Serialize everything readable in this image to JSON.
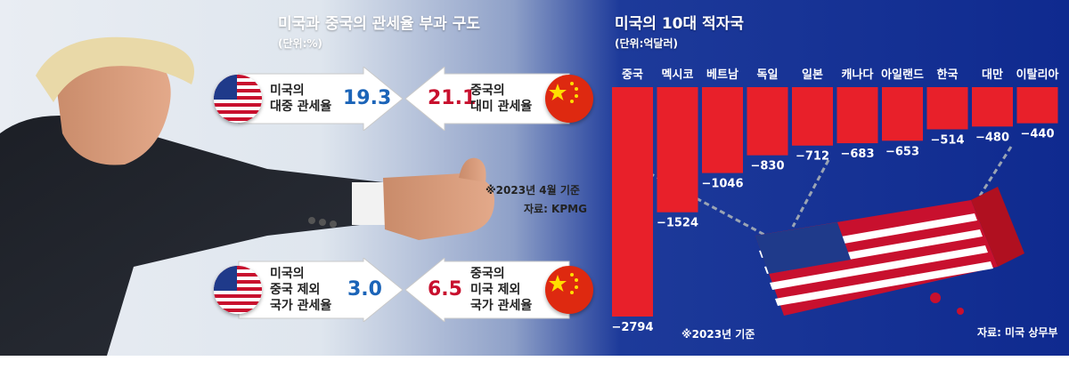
{
  "left": {
    "title": "미국과 중국의 관세율 부과 구도",
    "unit": "(단위:%)",
    "note_date": "※2023년 4월 기준",
    "note_source": "자료: KPMG",
    "rows": [
      {
        "us_label_1": "미국의",
        "us_label_2": "대중 관세율",
        "us_label_3": "",
        "us_value": "19.3",
        "cn_label_1": "중국의",
        "cn_label_2": "대미 관세율",
        "cn_label_3": "",
        "cn_value": "21.1"
      },
      {
        "us_label_1": "미국의",
        "us_label_2": "중국 제외",
        "us_label_3": "국가 관세율",
        "us_value": "3.0",
        "cn_label_1": "중국의",
        "cn_label_2": "미국 제외",
        "cn_label_3": "국가 관세율",
        "cn_value": "6.5"
      }
    ]
  },
  "chart_data": {
    "type": "bar",
    "title": "미국의 10대 적자국",
    "subtitle": "(단위:억달러)",
    "categories": [
      "중국",
      "멕시코",
      "베트남",
      "독일",
      "일본",
      "캐나다",
      "아일랜드",
      "한국",
      "대만",
      "이탈리아"
    ],
    "values": [
      -2794,
      -1524,
      -1046,
      -830,
      -712,
      -683,
      -653,
      -514,
      -480,
      -440
    ],
    "value_labels": [
      "−2794",
      "−1524",
      "−1046",
      "−830",
      "−712",
      "−683",
      "−653",
      "−514",
      "−480",
      "−440"
    ],
    "ylim": [
      -2794,
      0
    ],
    "note": "※2023년 기준",
    "source": "자료: 미국 상무부",
    "bar_color": "#e8202a"
  }
}
